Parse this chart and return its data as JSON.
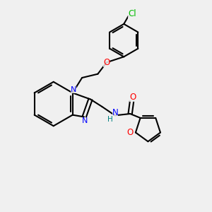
{
  "bg_color": "#f0f0f0",
  "line_color": "#000000",
  "n_color": "#0000ff",
  "o_color": "#ff0000",
  "cl_color": "#00bb00",
  "h_color": "#008080",
  "line_width": 1.5,
  "fig_size": [
    3.0,
    3.0
  ],
  "dpi": 100,
  "xlim": [
    0,
    10
  ],
  "ylim": [
    0,
    10
  ]
}
